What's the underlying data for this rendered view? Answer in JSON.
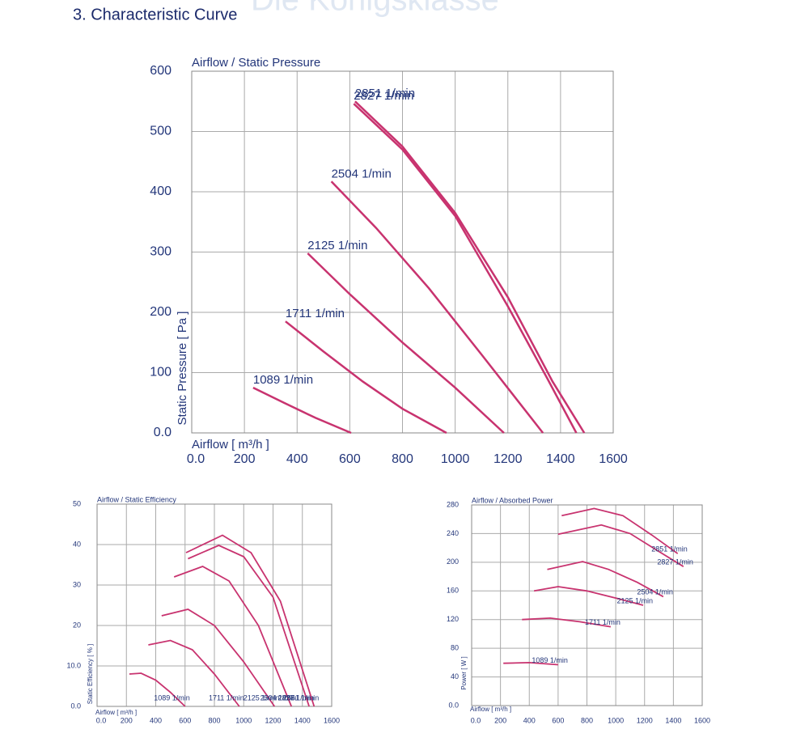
{
  "header": {
    "watermark": "Die Königsklasse",
    "title": "3. Characteristic Curve"
  },
  "chart_data": [
    {
      "type": "line",
      "title": "Airflow / Static Pressure",
      "x_label": "Airflow [ m³/h ]",
      "y_label": "Static Pressure [ Pa ]",
      "xlim": [
        0,
        1600
      ],
      "ylim": [
        0,
        600
      ],
      "xticks": [
        {
          "value": 0,
          "label": "0.0"
        },
        200,
        400,
        600,
        800,
        1000,
        1200,
        1400,
        1600
      ],
      "yticks": [
        {
          "value": 0,
          "label": "0.0"
        },
        100,
        200,
        300,
        400,
        500,
        600
      ],
      "grid": true,
      "series": [
        {
          "name": "1089 1/min",
          "color": "#c8336f",
          "x": [
            233,
            350,
            470,
            605
          ],
          "values": [
            75,
            50,
            25,
            0
          ]
        },
        {
          "name": "1711 1/min",
          "color": "#c8336f",
          "x": [
            356,
            500,
            650,
            800,
            967
          ],
          "values": [
            185,
            135,
            85,
            40,
            0
          ]
        },
        {
          "name": "2125 1/min",
          "color": "#c8336f",
          "x": [
            440,
            600,
            800,
            1000,
            1185
          ],
          "values": [
            298,
            230,
            150,
            75,
            0
          ]
        },
        {
          "name": "2504 1/min",
          "color": "#c8336f",
          "x": [
            530,
            700,
            900,
            1100,
            1333
          ],
          "values": [
            417,
            340,
            240,
            130,
            0
          ]
        },
        {
          "name": "2827 1/min",
          "color": "#c8336f",
          "x": [
            615,
            800,
            1000,
            1200,
            1350,
            1460
          ],
          "values": [
            546,
            470,
            360,
            210,
            90,
            0
          ]
        },
        {
          "name": "2851 1/min",
          "color": "#c8336f",
          "x": [
            620,
            800,
            1000,
            1200,
            1370,
            1490
          ],
          "values": [
            550,
            475,
            365,
            225,
            85,
            0
          ]
        }
      ]
    },
    {
      "type": "line",
      "title": "Airflow / Static Efficiency",
      "x_label": "Airflow [ m³/h ]",
      "y_label": "Static Efficiency [ % ]",
      "xlim": [
        0,
        1600
      ],
      "ylim": [
        0,
        50
      ],
      "xticks": [
        {
          "value": 0,
          "label": "0.0"
        },
        200,
        400,
        600,
        800,
        1000,
        1200,
        1400,
        1600
      ],
      "yticks": [
        {
          "value": 0,
          "label": "0.0"
        },
        {
          "value": 10,
          "label": "10.0"
        },
        20,
        30,
        40,
        50
      ],
      "grid": true,
      "series": [
        {
          "name": "1089 1/min",
          "color": "#c8336f",
          "x": [
            220,
            300,
            400,
            500,
            600
          ],
          "values": [
            8,
            8.2,
            6.5,
            3.5,
            0
          ]
        },
        {
          "name": "1711 1/min",
          "color": "#c8336f",
          "x": [
            350,
            500,
            650,
            800,
            970
          ],
          "values": [
            15.2,
            16.3,
            14,
            8,
            0
          ]
        },
        {
          "name": "2125 1/min",
          "color": "#c8336f",
          "x": [
            440,
            620,
            800,
            1000,
            1210
          ],
          "values": [
            22.4,
            24,
            20,
            11,
            0
          ]
        },
        {
          "name": "2504 1/min",
          "color": "#c8336f",
          "x": [
            525,
            720,
            900,
            1100,
            1325
          ],
          "values": [
            32,
            34.6,
            31,
            20,
            0
          ]
        },
        {
          "name": "2827 1/min",
          "color": "#c8336f",
          "x": [
            620,
            830,
            1000,
            1200,
            1446
          ],
          "values": [
            36.5,
            39.8,
            37,
            27,
            0
          ]
        },
        {
          "name": "2851 1/min",
          "color": "#c8336f",
          "x": [
            607,
            855,
            1050,
            1250,
            1480
          ],
          "values": [
            38,
            42.3,
            38,
            26,
            0
          ]
        }
      ]
    },
    {
      "type": "line",
      "title": "Airflow / Absorbed Power",
      "x_label": "Airflow [ m³/h ]",
      "y_label": "Power [ W ]",
      "xlim": [
        0,
        1600
      ],
      "ylim": [
        0,
        280
      ],
      "xticks": [
        {
          "value": 0,
          "label": "0.0"
        },
        200,
        400,
        600,
        800,
        1000,
        1200,
        1400,
        1600
      ],
      "yticks": [
        {
          "value": 0,
          "label": "0.0"
        },
        40,
        80,
        120,
        160,
        200,
        240,
        280
      ],
      "grid": true,
      "series": [
        {
          "name": "1089 1/min",
          "color": "#c8336f",
          "x": [
            220,
            400,
            600
          ],
          "values": [
            59,
            60,
            57
          ]
        },
        {
          "name": "1711 1/min",
          "color": "#c8336f",
          "x": [
            350,
            545,
            750,
            965
          ],
          "values": [
            120,
            122,
            117,
            110
          ]
        },
        {
          "name": "2125 1/min",
          "color": "#c8336f",
          "x": [
            433,
            600,
            800,
            1000,
            1190
          ],
          "values": [
            160,
            166,
            160,
            150,
            140
          ]
        },
        {
          "name": "2504 1/min",
          "color": "#c8336f",
          "x": [
            525,
            770,
            950,
            1150,
            1330
          ],
          "values": [
            190,
            201,
            190,
            172,
            152
          ]
        },
        {
          "name": "2827 1/min",
          "color": "#c8336f",
          "x": [
            600,
            900,
            1100,
            1300,
            1470
          ],
          "values": [
            239,
            252,
            240,
            215,
            194
          ]
        },
        {
          "name": "2851 1/min",
          "color": "#c8336f",
          "x": [
            625,
            850,
            1050,
            1250,
            1430
          ],
          "values": [
            265,
            275,
            265,
            238,
            212
          ]
        }
      ]
    }
  ]
}
